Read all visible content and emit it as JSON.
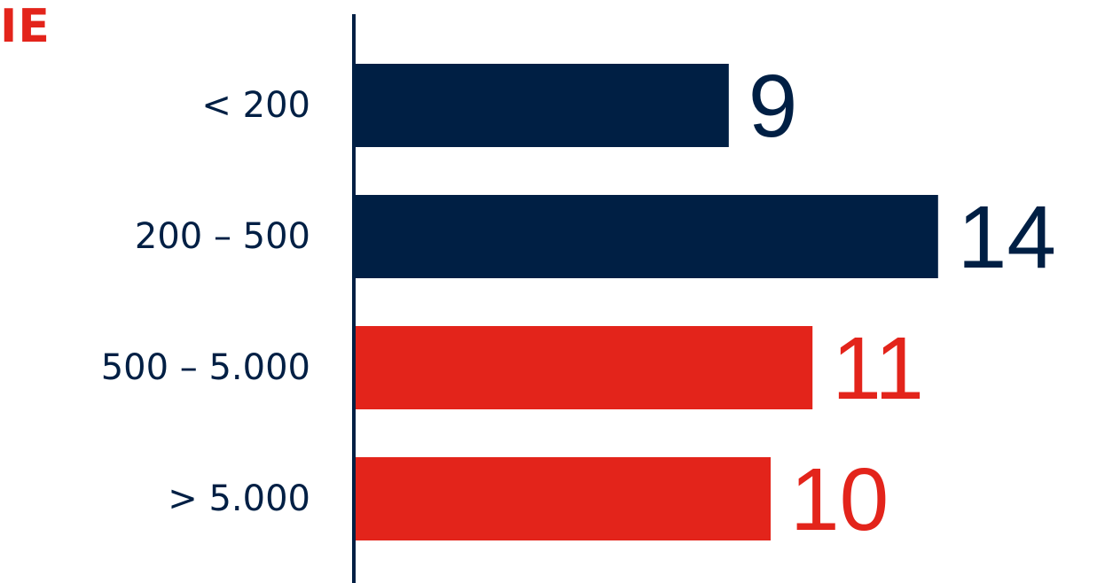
{
  "title_fragment": "IE",
  "colors": {
    "navy": "#001f44",
    "red": "#e3241b"
  },
  "chart_data": {
    "type": "bar",
    "orientation": "horizontal",
    "categories": [
      "< 200",
      "200 – 500",
      "500 – 5.000",
      "> 5.000"
    ],
    "values": [
      9,
      14,
      11,
      10
    ],
    "bar_colors": [
      "#001f44",
      "#001f44",
      "#e3241b",
      "#e3241b"
    ],
    "data_labels": [
      "9",
      "14",
      "11",
      "10"
    ],
    "xlim": [
      0,
      14
    ],
    "grid": false,
    "legend": "none"
  }
}
